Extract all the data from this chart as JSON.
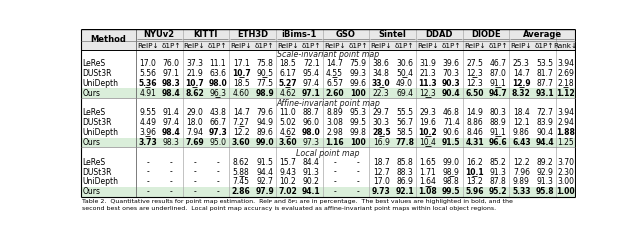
{
  "datasets": [
    "NYUv2",
    "KITTI",
    "ETH3D",
    "iBims-1",
    "GSO",
    "Sintel",
    "DDAD",
    "DIODE",
    "Average"
  ],
  "col_labels": [
    "Relᴘ↓",
    "δᴘ₁↑"
  ],
  "rank_label": "Rank↓",
  "section1_title": "Scale-invariant point map",
  "section1": [
    [
      "LeReS",
      "17.0",
      "76.0",
      "37.3",
      "11.1",
      "17.1",
      "75.8",
      "18.5",
      "72.1",
      "14.7",
      "75.9",
      "38.6",
      "30.6",
      "31.9",
      "39.6",
      "27.5",
      "46.7",
      "25.3",
      "53.5",
      "3.94"
    ],
    [
      "DUSt3R",
      "5.56",
      "97.1",
      "21.9",
      "63.6",
      "10.7",
      "90.5",
      "6.17",
      "95.4",
      "4.55",
      "99.3",
      "34.8",
      "50.4",
      "21.3",
      "70.3",
      "12.3",
      "87.0",
      "14.7",
      "81.7",
      "2.69"
    ],
    [
      "UniDepth",
      "5.36",
      "98.3",
      "10.7",
      "98.0",
      "18.5",
      "77.5",
      "5.27",
      "97.4",
      "6.57",
      "99.6",
      "33.0",
      "49.0",
      "11.3",
      "90.3",
      "12.3",
      "91.1",
      "12.9",
      "87.7",
      "2.18"
    ],
    [
      "Ours",
      "4.91",
      "98.4",
      "8.62",
      "96.3",
      "4.60",
      "98.9",
      "4.62",
      "97.1",
      "2.60",
      "100",
      "22.3",
      "69.4",
      "12.3",
      "90.4",
      "6.50",
      "94.7",
      "8.32",
      "93.1",
      "1.12"
    ]
  ],
  "section1_bold": [
    [
      false,
      false,
      false,
      false,
      false,
      false,
      false,
      false,
      false,
      false,
      false,
      false,
      false,
      false,
      false,
      false,
      false,
      false,
      false
    ],
    [
      false,
      false,
      false,
      false,
      true,
      false,
      false,
      false,
      false,
      false,
      false,
      false,
      false,
      false,
      false,
      false,
      false,
      false,
      false
    ],
    [
      true,
      true,
      true,
      true,
      false,
      false,
      true,
      false,
      false,
      false,
      true,
      false,
      true,
      true,
      false,
      false,
      true,
      false,
      false
    ],
    [
      false,
      true,
      true,
      false,
      false,
      true,
      false,
      true,
      true,
      true,
      false,
      false,
      false,
      true,
      true,
      true,
      true,
      true,
      true
    ]
  ],
  "section1_underline": [
    [
      false,
      false,
      false,
      false,
      false,
      false,
      false,
      false,
      false,
      false,
      false,
      false,
      false,
      false,
      false,
      false,
      false,
      false,
      false
    ],
    [
      false,
      false,
      false,
      false,
      true,
      true,
      false,
      false,
      true,
      false,
      false,
      true,
      false,
      false,
      true,
      false,
      false,
      false,
      false
    ],
    [
      true,
      false,
      true,
      false,
      false,
      false,
      true,
      false,
      false,
      false,
      true,
      false,
      false,
      false,
      false,
      true,
      true,
      false,
      true
    ],
    [
      false,
      false,
      false,
      true,
      false,
      false,
      false,
      false,
      false,
      false,
      false,
      false,
      true,
      false,
      false,
      false,
      false,
      false,
      false
    ]
  ],
  "section2_title": "Affine-invariant point map",
  "section2": [
    [
      "LeReS",
      "9.55",
      "91.4",
      "29.0",
      "43.8",
      "14.7",
      "79.6",
      "11.0",
      "88.7",
      "8.89",
      "95.3",
      "29.7",
      "55.5",
      "29.3",
      "46.8",
      "14.9",
      "80.3",
      "18.4",
      "72.7",
      "3.94"
    ],
    [
      "DUSt3R",
      "4.49",
      "97.4",
      "18.0",
      "66.7",
      "7.27",
      "94.9",
      "5.02",
      "96.0",
      "3.08",
      "99.5",
      "30.3",
      "56.7",
      "19.6",
      "71.4",
      "8.86",
      "88.9",
      "12.1",
      "83.9",
      "2.94"
    ],
    [
      "UniDepth",
      "3.96",
      "98.4",
      "7.94",
      "97.3",
      "12.2",
      "89.6",
      "4.62",
      "98.0",
      "2.98",
      "99.8",
      "28.5",
      "58.5",
      "10.2",
      "90.6",
      "8.46",
      "91.1",
      "9.86",
      "90.4",
      "1.88"
    ],
    [
      "Ours",
      "3.73",
      "98.3",
      "7.69",
      "95.0",
      "3.60",
      "99.0",
      "3.60",
      "97.3",
      "1.16",
      "100",
      "16.9",
      "77.8",
      "10.4",
      "91.5",
      "4.31",
      "96.6",
      "6.43",
      "94.4",
      "1.25"
    ]
  ],
  "section2_bold": [
    [
      false,
      false,
      false,
      false,
      false,
      false,
      false,
      false,
      false,
      false,
      false,
      false,
      false,
      false,
      false,
      false,
      false,
      false,
      false
    ],
    [
      false,
      false,
      false,
      false,
      false,
      false,
      false,
      false,
      false,
      false,
      false,
      false,
      false,
      false,
      false,
      false,
      false,
      false,
      false
    ],
    [
      false,
      true,
      false,
      true,
      false,
      false,
      false,
      true,
      false,
      false,
      true,
      false,
      true,
      false,
      false,
      false,
      false,
      false,
      true
    ],
    [
      true,
      false,
      true,
      false,
      true,
      true,
      true,
      false,
      true,
      true,
      false,
      true,
      false,
      true,
      true,
      true,
      true,
      true,
      false
    ]
  ],
  "section2_underline": [
    [
      false,
      false,
      false,
      false,
      false,
      false,
      false,
      false,
      false,
      false,
      false,
      false,
      false,
      false,
      false,
      false,
      false,
      false,
      false
    ],
    [
      false,
      false,
      false,
      false,
      true,
      false,
      false,
      false,
      false,
      false,
      false,
      false,
      false,
      false,
      false,
      false,
      false,
      false,
      false
    ],
    [
      true,
      false,
      false,
      false,
      false,
      false,
      true,
      false,
      false,
      false,
      true,
      false,
      true,
      false,
      false,
      true,
      false,
      false,
      false
    ],
    [
      false,
      false,
      false,
      false,
      false,
      false,
      false,
      false,
      false,
      false,
      false,
      false,
      true,
      false,
      false,
      false,
      false,
      false,
      false
    ]
  ],
  "section3_title": "Local point map",
  "section3": [
    [
      "LeReS",
      "-",
      "-",
      "-",
      "-",
      "8.62",
      "91.5",
      "15.7",
      "84.4",
      "-",
      "-",
      "18.7",
      "85.8",
      "1.65",
      "99.0",
      "16.2",
      "85.2",
      "12.2",
      "89.2",
      "3.70"
    ],
    [
      "DUSt3R",
      "-",
      "-",
      "-",
      "-",
      "5.88",
      "94.4",
      "9.43",
      "91.3",
      "-",
      "-",
      "12.7",
      "88.3",
      "1.71",
      "98.9",
      "10.1",
      "91.3",
      "7.96",
      "92.9",
      "2.30"
    ],
    [
      "UniDepth",
      "-",
      "-",
      "-",
      "-",
      "7.45",
      "92.7",
      "10.2",
      "90.2",
      "-",
      "-",
      "17.0",
      "86.9",
      "1.64",
      "98.8",
      "13.2",
      "87.8",
      "9.89",
      "91.3",
      "3.00"
    ],
    [
      "Ours",
      "-",
      "-",
      "-",
      "-",
      "2.86",
      "97.9",
      "7.02",
      "94.1",
      "-",
      "-",
      "9.73",
      "92.1",
      "1.08",
      "99.5",
      "5.96",
      "95.2",
      "5.33",
      "95.8",
      "1.00"
    ]
  ],
  "section3_bold": [
    [
      false,
      false,
      false,
      false,
      false,
      false,
      false,
      false,
      false,
      false,
      false,
      false,
      false,
      false,
      false,
      false,
      false,
      false,
      false
    ],
    [
      false,
      false,
      false,
      false,
      false,
      false,
      false,
      false,
      false,
      false,
      false,
      false,
      false,
      false,
      true,
      false,
      false,
      false,
      false
    ],
    [
      false,
      false,
      false,
      false,
      false,
      false,
      false,
      false,
      false,
      false,
      false,
      false,
      false,
      false,
      false,
      false,
      false,
      false,
      false
    ],
    [
      false,
      false,
      false,
      false,
      true,
      true,
      true,
      true,
      false,
      false,
      true,
      true,
      true,
      true,
      true,
      true,
      true,
      true,
      true
    ]
  ],
  "section3_underline": [
    [
      false,
      false,
      false,
      false,
      false,
      false,
      false,
      false,
      false,
      false,
      false,
      false,
      false,
      false,
      false,
      false,
      false,
      false,
      false
    ],
    [
      false,
      false,
      false,
      false,
      true,
      false,
      false,
      false,
      false,
      false,
      false,
      false,
      false,
      true,
      true,
      false,
      false,
      false,
      false
    ],
    [
      false,
      false,
      false,
      false,
      false,
      false,
      false,
      false,
      false,
      false,
      false,
      false,
      true,
      false,
      false,
      false,
      false,
      false,
      false
    ],
    [
      false,
      false,
      false,
      false,
      false,
      false,
      false,
      false,
      false,
      false,
      false,
      false,
      false,
      false,
      false,
      false,
      false,
      false,
      false
    ]
  ],
  "caption": "Table 2.  Quantitative results for point map estimation.  Relᴘ and δᴘ₁ are in percentage.  The best values are highlighted in bold, and the",
  "caption2": "second best ones are underlined.  Local point map accuracy is evaluated as affine-invariant point maps within local object regions.",
  "header_bg": "#e8e8e8",
  "ours_bg": "#daeeda",
  "font_size": 5.5,
  "header_font_size": 6.0
}
